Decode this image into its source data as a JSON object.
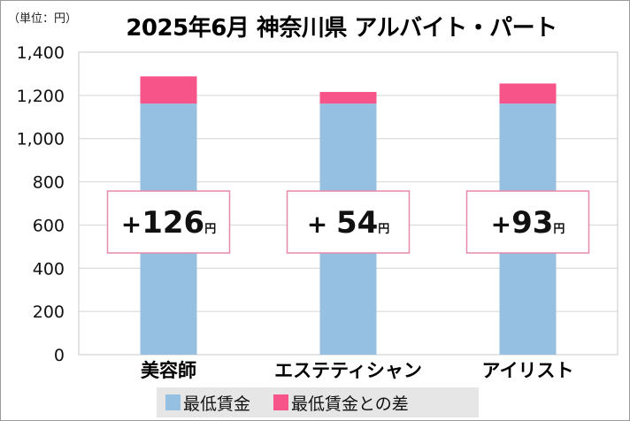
{
  "chart_data": {
    "type": "bar",
    "stacked": true,
    "title": "2025年6月 神奈川県 アルバイト・パート",
    "unit_label": "（単位：円）",
    "categories": [
      "美容師",
      "エステティシャン",
      "アイリスト"
    ],
    "series": [
      {
        "name": "最低賃金",
        "values": [
          1162,
          1162,
          1162
        ],
        "color": "#95c0e2"
      },
      {
        "name": "最低賃金との差",
        "values": [
          126,
          54,
          93
        ],
        "color": "#f75489"
      }
    ],
    "annotations": [
      {
        "sign": "+",
        "value": "126",
        "suffix": "円"
      },
      {
        "sign": "+ ",
        "value": "54",
        "suffix": "円"
      },
      {
        "sign": "+",
        "value": "93",
        "suffix": "円"
      }
    ],
    "yticks": [
      "0",
      "200",
      "400",
      "600",
      "800",
      "1,000",
      "1,200",
      "1,400"
    ],
    "ylim": [
      0,
      1400
    ],
    "grid": true,
    "legend_position": "bottom"
  }
}
